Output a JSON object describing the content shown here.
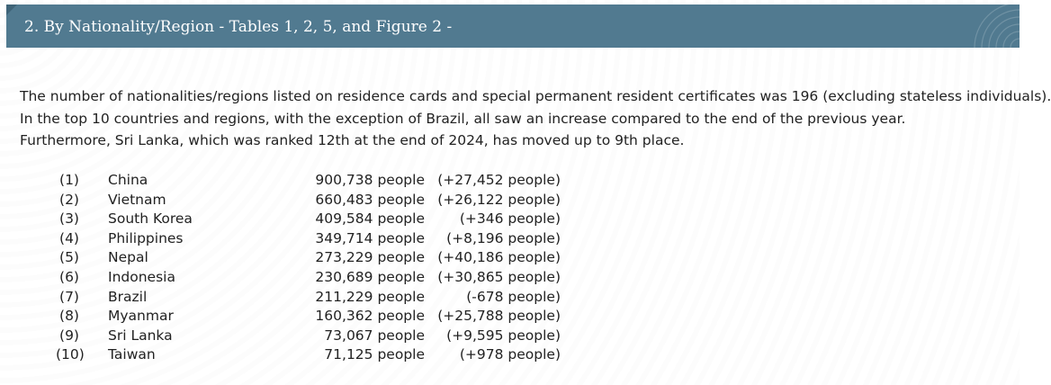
{
  "header": {
    "title": "2. By Nationality/Region - Tables 1, 2, 5, and Figure 2 -"
  },
  "intro": {
    "lines": [
      "The number of nationalities/regions listed on residence cards and special permanent resident certificates was 196 (excluding stateless individuals).",
      "In the top 10 countries and regions, with the exception of Brazil, all saw an increase compared to the end of the previous year.",
      "Furthermore, Sri Lanka, which was ranked 12th at the end of 2024, has moved up to 9th place."
    ]
  },
  "ranking": [
    {
      "rank": "(1)",
      "country": "China",
      "population": "900,738 people",
      "change": "(+27,452 people)"
    },
    {
      "rank": "(2)",
      "country": "Vietnam",
      "population": "660,483 people",
      "change": "(+26,122 people)"
    },
    {
      "rank": "(3)",
      "country": "South Korea",
      "population": "409,584 people",
      "change": "(+346 people)"
    },
    {
      "rank": "(4)",
      "country": "Philippines",
      "population": "349,714 people",
      "change": "(+8,196 people)"
    },
    {
      "rank": "(5)",
      "country": "Nepal",
      "population": "273,229 people",
      "change": "(+40,186 people)"
    },
    {
      "rank": "(6)",
      "country": "Indonesia",
      "population": "230,689 people",
      "change": "(+30,865 people)"
    },
    {
      "rank": "(7)",
      "country": "Brazil",
      "population": "211,229 people",
      "change": "(-678 people)"
    },
    {
      "rank": "(8)",
      "country": "Myanmar",
      "population": "160,362 people",
      "change": "(+25,788 people)"
    },
    {
      "rank": "(9)",
      "country": "Sri Lanka",
      "population": "73,067 people",
      "change": "(+9,595 people)"
    },
    {
      "rank": "(10)",
      "country": "Taiwan",
      "population": "71,125 people",
      "change": "(+978 people)"
    }
  ],
  "colors": {
    "header_bg": "#517a90",
    "header_text": "#ffffff",
    "body_text": "#222222"
  }
}
